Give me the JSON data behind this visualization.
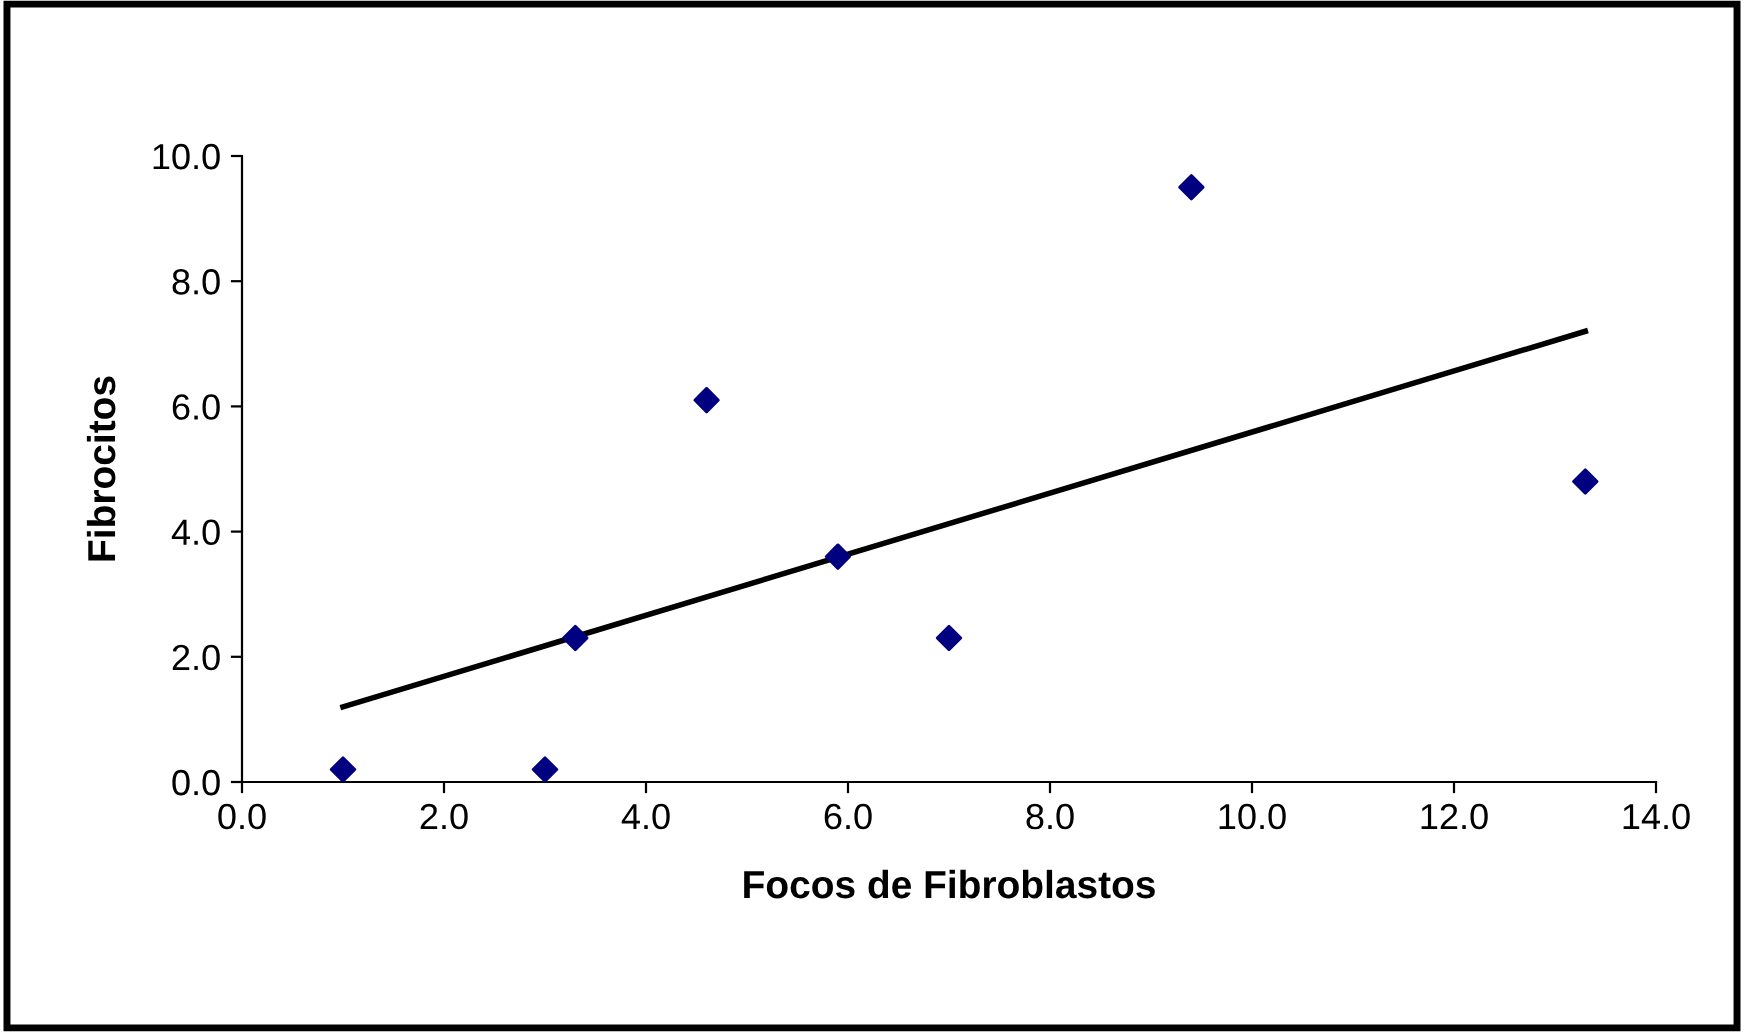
{
  "chart_data": {
    "type": "scatter",
    "xlabel": "Focos de Fibroblastos",
    "ylabel": "Fibrocitos",
    "marker": "diamond",
    "grid": false,
    "legend": false,
    "xlim": [
      0,
      14
    ],
    "ylim": [
      0,
      10
    ],
    "xticks": [
      {
        "value": 0,
        "label": "0.0"
      },
      {
        "value": 2,
        "label": "2.0"
      },
      {
        "value": 4,
        "label": "4.0"
      },
      {
        "value": 6,
        "label": "6.0"
      },
      {
        "value": 8,
        "label": "8.0"
      },
      {
        "value": 10,
        "label": "10.0"
      },
      {
        "value": 12,
        "label": "12.0"
      },
      {
        "value": 14,
        "label": "14.0"
      }
    ],
    "yticks": [
      {
        "value": 0,
        "label": "0.0"
      },
      {
        "value": 2,
        "label": "2.0"
      },
      {
        "value": 4,
        "label": "4.0"
      },
      {
        "value": 6,
        "label": "6.0"
      },
      {
        "value": 8,
        "label": "8.0"
      },
      {
        "value": 10,
        "label": "10.0"
      }
    ],
    "series": [
      {
        "color": "#000080",
        "x": [
          1.0,
          3.0,
          3.3,
          4.6,
          5.9,
          7.0,
          9.4,
          13.3
        ],
        "values": [
          0.2,
          0.2,
          2.3,
          6.1,
          3.6,
          2.3,
          9.5,
          4.8
        ]
      },
      {
        "type": "line",
        "color": "#000000",
        "marker": "none",
        "line_style": "solid",
        "x": [
          1.0,
          13.3
        ],
        "values": [
          1.2,
          7.2
        ]
      }
    ]
  }
}
